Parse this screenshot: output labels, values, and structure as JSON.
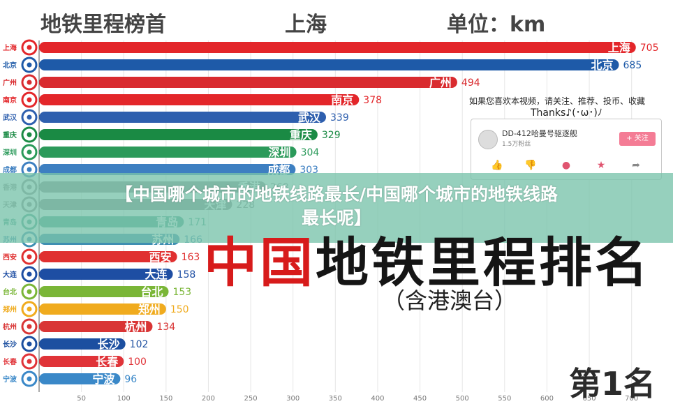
{
  "header": {
    "left_title": "地铁里程榜首",
    "center_title": "上海",
    "right_title": "单位：km"
  },
  "overlay": {
    "banner_line1": "【中国哪个城市的地铁线路最长/中国哪个城市的地铁线路",
    "banner_line2": "最长呢】"
  },
  "big_title": {
    "red_part": "中国",
    "black_part": "地铁里程排名",
    "subtitle": "（含港澳台）"
  },
  "rank_label": "第1名",
  "prompt": {
    "line": "如果您喜欢本视频，请关注、推荐、投币、收藏",
    "thanks": "Thanks♪(･ω･)ﾉ"
  },
  "card": {
    "name": "DD-412哈曼号驱逐舰",
    "fans": "1.5万粉丝",
    "follow_label": "+ 关注"
  },
  "chart_data": {
    "type": "bar",
    "orientation": "horizontal",
    "title": "",
    "xlabel": "",
    "ylabel": "",
    "xlim": [
      0,
      725
    ],
    "x_ticks": [
      50,
      100,
      150,
      200,
      250,
      300,
      350,
      400,
      450,
      500,
      550,
      600,
      650,
      700
    ],
    "categories": [
      "上海",
      "北京",
      "广州",
      "南京",
      "武汉",
      "重庆",
      "深圳",
      "成都",
      "香港",
      "天津",
      "青岛",
      "苏州",
      "西安",
      "大连",
      "台北",
      "郑州",
      "杭州",
      "长沙",
      "长春",
      "宁波"
    ],
    "values": [
      705,
      685,
      494,
      378,
      339,
      329,
      304,
      303,
      268,
      228,
      171,
      166,
      163,
      158,
      153,
      150,
      134,
      102,
      100,
      96
    ],
    "colors": [
      "#e3262a",
      "#1e5aa8",
      "#d92b2f",
      "#e3262a",
      "#2e5fae",
      "#1a8a44",
      "#2b9a5a",
      "#3d7fc1",
      "#909090",
      "#8c8c8c",
      "#4ea68e",
      "#3f8fb1",
      "#e03030",
      "#1e4ea3",
      "#7ab637",
      "#f0ab1e",
      "#d93535",
      "#1c4fa0",
      "#e03338",
      "#3a88c8"
    ]
  }
}
